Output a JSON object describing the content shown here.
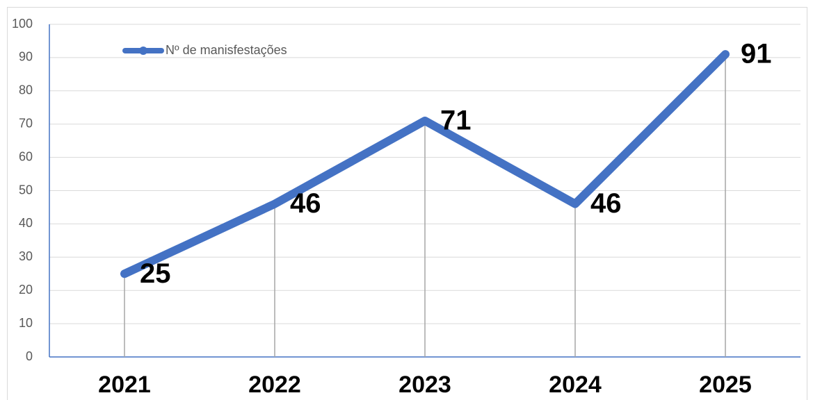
{
  "chart_data": {
    "type": "line",
    "categories": [
      "2021",
      "2022",
      "2023",
      "2024",
      "2025"
    ],
    "series": [
      {
        "name": "Nº de manisfestações",
        "color": "#4472c4",
        "values": [
          25,
          46,
          71,
          46,
          91
        ]
      }
    ],
    "ylim": [
      0,
      100
    ],
    "yticks": [
      0,
      10,
      20,
      30,
      40,
      50,
      60,
      70,
      80,
      90,
      100
    ],
    "grid": true,
    "legend": "upper left"
  }
}
